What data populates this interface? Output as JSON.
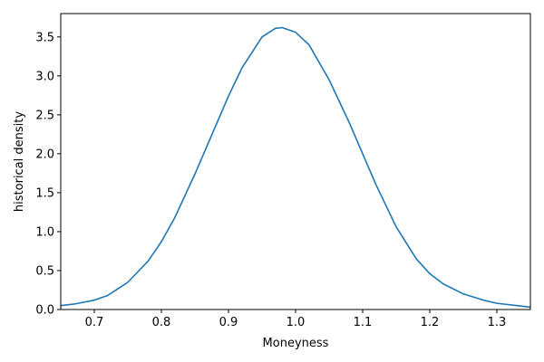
{
  "chart_data": {
    "type": "line",
    "title": "",
    "xlabel": "Moneyness",
    "ylabel": "historical density",
    "xlim": [
      0.65,
      1.35
    ],
    "ylim": [
      0.0,
      3.8
    ],
    "grid": false,
    "x_ticks": [
      0.7,
      0.8,
      0.9,
      1.0,
      1.1,
      1.2,
      1.3
    ],
    "x_tick_labels": [
      "0.7",
      "0.8",
      "0.9",
      "1.0",
      "1.1",
      "1.2",
      "1.3"
    ],
    "y_ticks": [
      0.0,
      0.5,
      1.0,
      1.5,
      2.0,
      2.5,
      3.0,
      3.5
    ],
    "y_tick_labels": [
      "0.0",
      "0.5",
      "1.0",
      "1.5",
      "2.0",
      "2.5",
      "3.0",
      "3.5"
    ],
    "series": [
      {
        "color": "#1f77b4",
        "x": [
          0.65,
          0.67,
          0.7,
          0.72,
          0.75,
          0.78,
          0.8,
          0.82,
          0.85,
          0.88,
          0.9,
          0.92,
          0.95,
          0.97,
          0.98,
          1.0,
          1.02,
          1.05,
          1.08,
          1.1,
          1.12,
          1.15,
          1.18,
          1.2,
          1.22,
          1.25,
          1.28,
          1.3,
          1.33,
          1.35
        ],
        "y": [
          0.05,
          0.07,
          0.12,
          0.18,
          0.35,
          0.62,
          0.87,
          1.18,
          1.74,
          2.34,
          2.74,
          3.1,
          3.5,
          3.61,
          3.62,
          3.56,
          3.4,
          2.95,
          2.4,
          2.0,
          1.6,
          1.06,
          0.65,
          0.46,
          0.33,
          0.2,
          0.12,
          0.08,
          0.05,
          0.03
        ]
      }
    ]
  }
}
